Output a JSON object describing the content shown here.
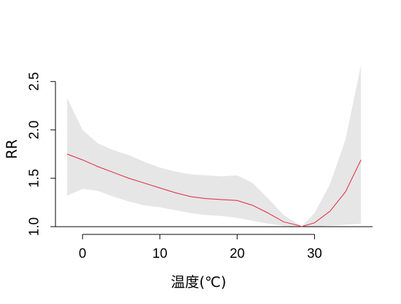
{
  "chart_data": {
    "type": "line",
    "xlabel": "温度(℃)",
    "ylabel": "RR",
    "xlim": [
      -3.5,
      37.5
    ],
    "ylim": [
      0.92,
      2.77
    ],
    "x_ticks": [
      0,
      10,
      20,
      30
    ],
    "y_ticks": [
      1.0,
      1.5,
      2.0,
      2.5
    ],
    "y_tick_labels": [
      "1.0",
      "1.5",
      "2.0",
      "2.5"
    ],
    "reference_line_y": 1.0,
    "grid": false,
    "colors": {
      "line": "#e3223c",
      "band": "#e6e6e6",
      "reference": "#000000"
    },
    "series": [
      {
        "x": [
          -2,
          0,
          2,
          4,
          6,
          8,
          10,
          12,
          14,
          16,
          18,
          20,
          22,
          24,
          26,
          28,
          28.3,
          30,
          32,
          34,
          36
        ],
        "y": [
          1.75,
          1.69,
          1.62,
          1.56,
          1.5,
          1.45,
          1.4,
          1.35,
          1.31,
          1.29,
          1.28,
          1.27,
          1.22,
          1.14,
          1.05,
          1.01,
          1.0,
          1.04,
          1.16,
          1.36,
          1.69
        ],
        "lower": [
          1.32,
          1.39,
          1.37,
          1.31,
          1.26,
          1.22,
          1.2,
          1.17,
          1.14,
          1.12,
          1.11,
          1.09,
          1.06,
          1.03,
          1.01,
          1.0,
          1.0,
          1.0,
          1.01,
          1.02,
          1.03
        ],
        "upper": [
          2.33,
          2.0,
          1.86,
          1.79,
          1.74,
          1.67,
          1.61,
          1.57,
          1.54,
          1.53,
          1.52,
          1.53,
          1.45,
          1.29,
          1.12,
          1.02,
          1.0,
          1.14,
          1.44,
          1.9,
          2.67
        ]
      }
    ]
  }
}
